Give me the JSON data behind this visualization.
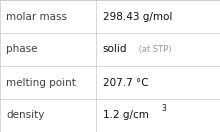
{
  "rows": [
    {
      "label": "molar mass",
      "value": "298.43 g/mol",
      "type": "plain"
    },
    {
      "label": "phase",
      "value": "solid",
      "value_suffix": " (at STP)",
      "type": "suffix"
    },
    {
      "label": "melting point",
      "value": "207.7 °C",
      "type": "plain"
    },
    {
      "label": "density",
      "value": "1.2 g/cm",
      "superscript": "3",
      "type": "super"
    }
  ],
  "col_split": 0.435,
  "background_color": "#ffffff",
  "border_color": "#c8c8c8",
  "label_color": "#404040",
  "value_color": "#111111",
  "suffix_color": "#999999",
  "label_fontsize": 7.5,
  "value_fontsize": 7.5,
  "suffix_fontsize": 6.0,
  "super_fontsize": 5.5,
  "font_family": "DejaVu Sans"
}
